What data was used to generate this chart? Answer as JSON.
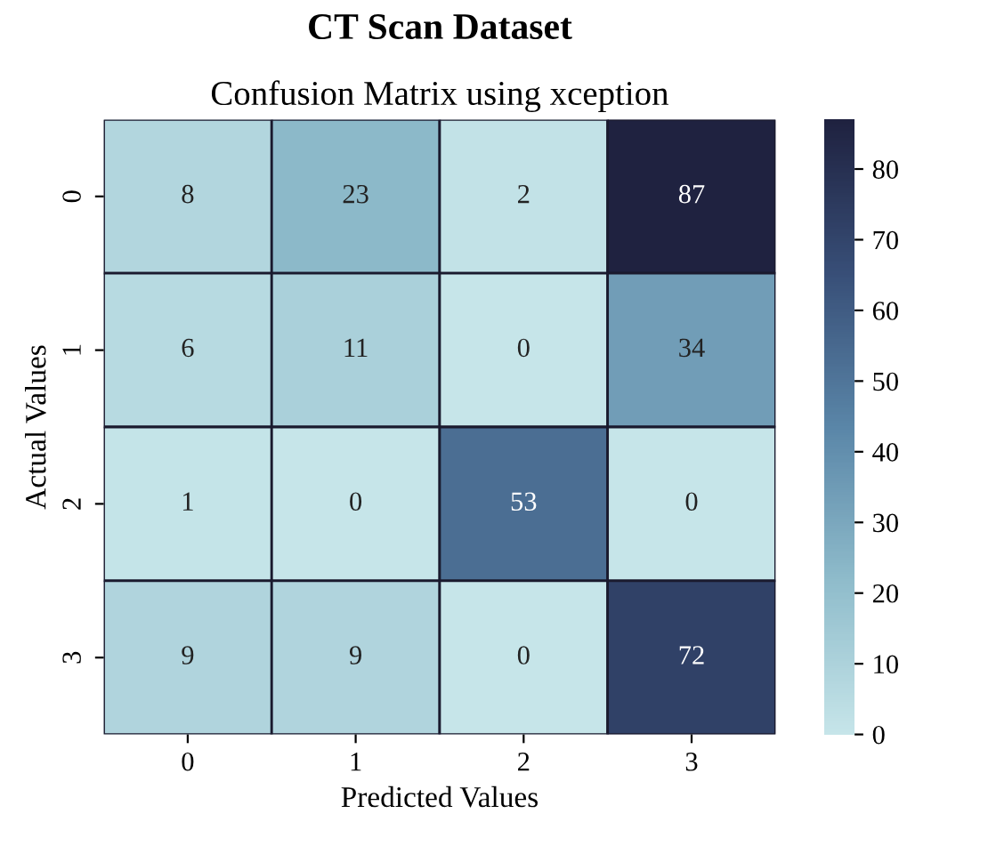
{
  "chart_data": {
    "type": "heatmap",
    "title": "CT Scan Dataset",
    "subtitle": "Confusion Matrix using xception",
    "xlabel": "Predicted Values",
    "ylabel": "Actual Values",
    "categories": [
      "0",
      "1",
      "2",
      "3"
    ],
    "y_categories": [
      "0",
      "1",
      "2",
      "3"
    ],
    "cells": [
      [
        8,
        23,
        2,
        87
      ],
      [
        6,
        11,
        0,
        34
      ],
      [
        1,
        0,
        53,
        0
      ],
      [
        9,
        9,
        0,
        72
      ]
    ],
    "data_labels": true,
    "clim": [
      0,
      87
    ],
    "cticks": [
      0,
      10,
      20,
      30,
      40,
      50,
      60,
      70,
      80
    ]
  }
}
